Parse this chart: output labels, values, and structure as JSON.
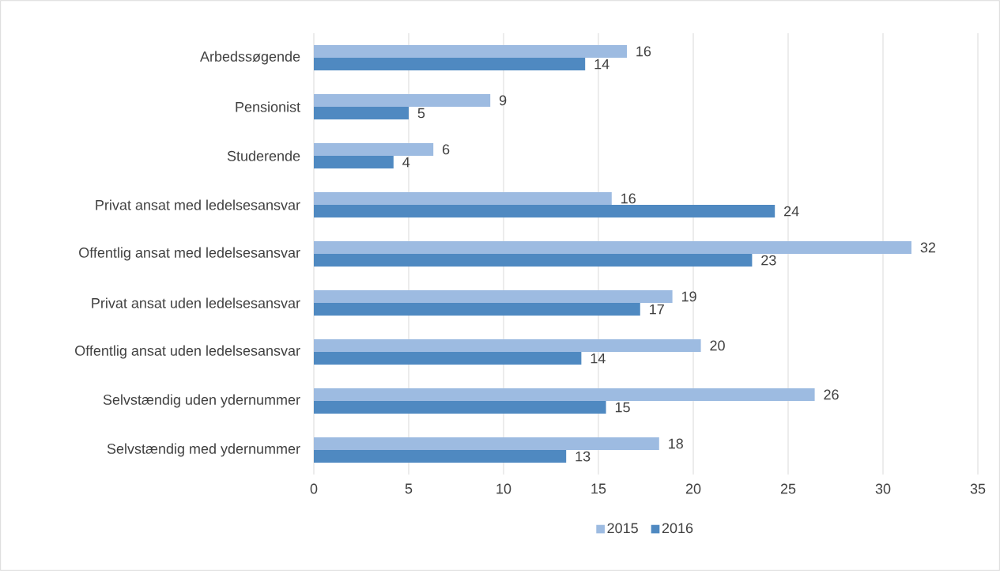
{
  "chart_data": {
    "type": "bar",
    "orientation": "horizontal",
    "categories": [
      "Arbedssøgende",
      "Pensionist",
      "Studerende",
      "Privat ansat med ledelsesansvar",
      "Offentlig ansat med ledelsesansvar",
      "Privat ansat uden ledelsesansvar",
      "Offentlig ansat uden ledelsesansvar",
      "Selvstændig uden ydernummer",
      "Selvstændig med ydernummer"
    ],
    "series": [
      {
        "name": "2015",
        "color": "#9dbbe1",
        "values": [
          16.5,
          9.3,
          6.3,
          15.7,
          31.5,
          18.9,
          20.4,
          26.4,
          18.2
        ],
        "value_labels": [
          "16",
          "9",
          "6",
          "16",
          "32",
          "19",
          "20",
          "26",
          "18"
        ]
      },
      {
        "name": "2016",
        "color": "#4f89c1",
        "values": [
          14.3,
          5.0,
          4.2,
          24.3,
          23.1,
          17.2,
          14.1,
          15.4,
          13.3
        ],
        "value_labels": [
          "14",
          "5",
          "4",
          "24",
          "23",
          "17",
          "14",
          "15",
          "13"
        ]
      }
    ],
    "xlim": [
      0,
      35
    ],
    "xticks": [
      0,
      5,
      10,
      15,
      20,
      25,
      30,
      35
    ],
    "grid": "x",
    "legend": "bottom"
  }
}
